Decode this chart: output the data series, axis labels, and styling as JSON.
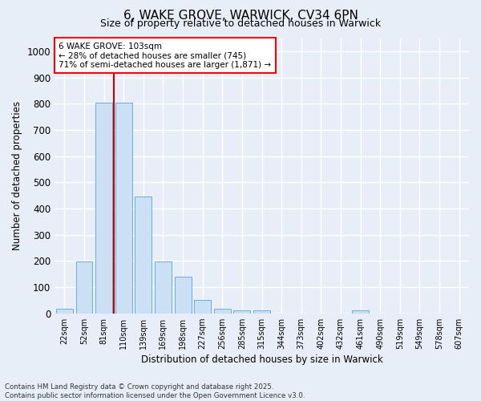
{
  "title": "6, WAKE GROVE, WARWICK, CV34 6PN",
  "subtitle": "Size of property relative to detached houses in Warwick",
  "xlabel": "Distribution of detached houses by size in Warwick",
  "ylabel": "Number of detached properties",
  "bar_labels": [
    "22sqm",
    "52sqm",
    "81sqm",
    "110sqm",
    "139sqm",
    "169sqm",
    "198sqm",
    "227sqm",
    "256sqm",
    "285sqm",
    "315sqm",
    "344sqm",
    "373sqm",
    "402sqm",
    "432sqm",
    "461sqm",
    "490sqm",
    "519sqm",
    "549sqm",
    "578sqm",
    "607sqm"
  ],
  "bar_values": [
    18,
    197,
    805,
    805,
    445,
    197,
    140,
    50,
    18,
    10,
    10,
    0,
    0,
    0,
    0,
    10,
    0,
    0,
    0,
    0,
    0
  ],
  "bar_color": "#cce0f5",
  "bar_edge_color": "#6aaed6",
  "fig_facecolor": "#e8eef8",
  "ax_facecolor": "#e8eef8",
  "grid_color": "#ffffff",
  "vline_color": "#cc0000",
  "ylim": [
    0,
    1050
  ],
  "yticks": [
    0,
    100,
    200,
    300,
    400,
    500,
    600,
    700,
    800,
    900,
    1000
  ],
  "annotation_line1": "6 WAKE GROVE: 103sqm",
  "annotation_line2": "← 28% of detached houses are smaller (745)",
  "annotation_line3": "71% of semi-detached houses are larger (1,871) →",
  "footer_line1": "Contains HM Land Registry data © Crown copyright and database right 2025.",
  "footer_line2": "Contains public sector information licensed under the Open Government Licence v3.0."
}
